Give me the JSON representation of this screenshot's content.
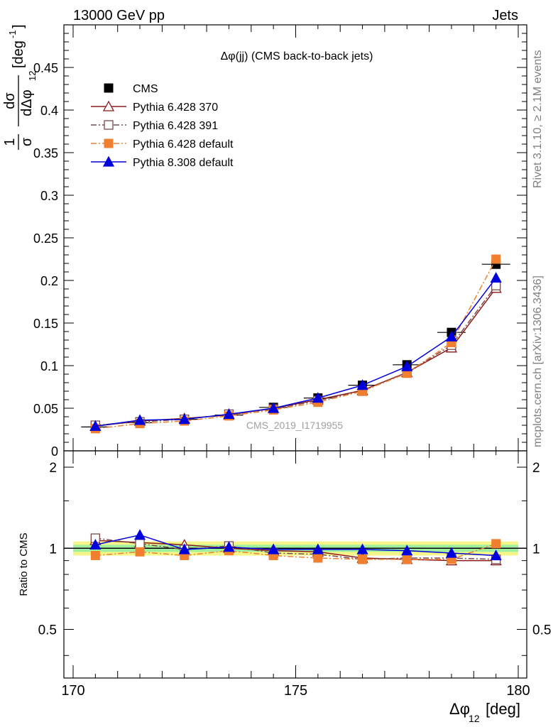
{
  "header": {
    "left": "13000 GeV pp",
    "right": "Jets"
  },
  "side_labels": {
    "rivet": "Rivet 3.1.10, ≥ 2.1M events",
    "source": "mcplots.cern.ch [arXiv:1306.3436]"
  },
  "chart_data": [
    {
      "type": "line",
      "title": "Δφ(jj) (CMS back-to-back jets)",
      "watermark": "CMS_2019_I1719955",
      "xlabel": "Δφ12 [deg]",
      "ylabel": "1/σ dσ/dΔφ12 [deg⁻¹]",
      "xlim": [
        170,
        180
      ],
      "ylim": [
        0,
        0.5
      ],
      "yticks": [
        "0",
        "0.05",
        "0.1",
        "0.15",
        "0.2",
        "0.25",
        "0.3",
        "0.35",
        "0.4",
        "0.45"
      ],
      "x": [
        170.5,
        171.5,
        172.5,
        173.5,
        174.5,
        175.5,
        176.5,
        177.5,
        178.5,
        179.5
      ],
      "series": [
        {
          "name": "CMS",
          "color": "#000000",
          "marker": "square",
          "values": [
            0.028,
            0.033,
            0.037,
            0.042,
            0.051,
            0.062,
            0.077,
            0.101,
            0.139,
            0.219
          ]
        },
        {
          "name": "Pythia 6.428 370",
          "color": "#8b1a1a",
          "marker": "triangle-open",
          "values": [
            0.029,
            0.035,
            0.038,
            0.042,
            0.05,
            0.06,
            0.071,
            0.092,
            0.121,
            0.191
          ]
        },
        {
          "name": "Pythia 6.428 391",
          "color": "#7a4a4a",
          "marker": "square-open",
          "values": [
            0.03,
            0.034,
            0.037,
            0.043,
            0.049,
            0.059,
            0.07,
            0.092,
            0.124,
            0.194
          ]
        },
        {
          "name": "Pythia 6.428 default",
          "color": "#f08030",
          "marker": "square",
          "values": [
            0.026,
            0.032,
            0.035,
            0.041,
            0.048,
            0.057,
            0.07,
            0.091,
            0.127,
            0.225
          ]
        },
        {
          "name": "Pythia 8.308 default",
          "color": "#0000dd",
          "marker": "triangle",
          "values": [
            0.029,
            0.036,
            0.037,
            0.043,
            0.05,
            0.062,
            0.077,
            0.099,
            0.134,
            0.203
          ]
        }
      ]
    },
    {
      "type": "line",
      "ylabel": "Ratio to CMS",
      "xlim": [
        170,
        180
      ],
      "ylim": [
        0.33,
        2.3
      ],
      "ylog": true,
      "xticks": [
        "170",
        "175",
        "180"
      ],
      "yticks": [
        "0.5",
        "1",
        "2"
      ],
      "x": [
        170.5,
        171.5,
        172.5,
        173.5,
        174.5,
        175.5,
        176.5,
        177.5,
        178.5,
        179.5
      ],
      "series": [
        {
          "name": "Pythia 6.428 370",
          "color": "#8b1a1a",
          "marker": "triangle-open",
          "values": [
            1.07,
            1.05,
            1.03,
            1.0,
            0.98,
            0.97,
            0.92,
            0.91,
            0.9,
            0.9
          ]
        },
        {
          "name": "Pythia 6.428 391",
          "color": "#7a4a4a",
          "marker": "square-open",
          "values": [
            1.09,
            1.04,
            0.99,
            1.02,
            0.96,
            0.95,
            0.91,
            0.92,
            0.92,
            0.91
          ]
        },
        {
          "name": "Pythia 6.428 default",
          "color": "#f08030",
          "marker": "square",
          "values": [
            0.94,
            0.97,
            0.94,
            0.98,
            0.94,
            0.92,
            0.91,
            0.91,
            0.91,
            1.04
          ]
        },
        {
          "name": "Pythia 8.308 default",
          "color": "#0000dd",
          "marker": "triangle",
          "values": [
            1.03,
            1.12,
            0.99,
            1.01,
            0.99,
            0.99,
            0.99,
            0.98,
            0.96,
            0.94
          ]
        }
      ]
    }
  ]
}
